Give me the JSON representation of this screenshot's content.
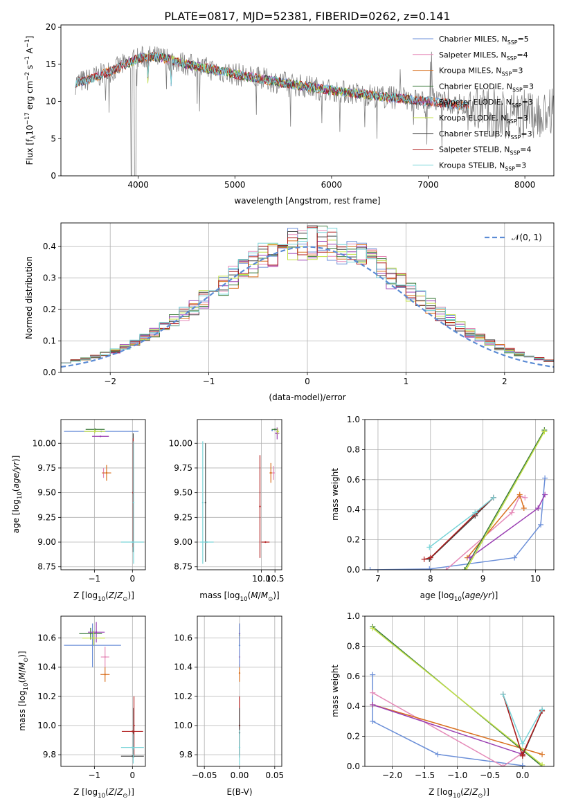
{
  "figure_title": "PLATE=0817, MJD=52381, FIBERID=0262, z=0.141",
  "colors": {
    "chabrier_miles": "#6b8fd8",
    "salpeter_miles": "#e58ab8",
    "kroupa_miles": "#d9701f",
    "chabrier_elodie": "#3a7a3a",
    "salpeter_elodie": "#9a3fb2",
    "kroupa_elodie": "#c3e048",
    "chabrier_stelib": "#444444",
    "salpeter_stelib": "#b01c1c",
    "kroupa_stelib": "#79d4d8",
    "data": "#808080"
  },
  "chart_data": [
    {
      "id": "spectrum",
      "type": "line",
      "xlabel": "wavelength [Angstrom, rest frame]",
      "ylabel": "Flux [f_λ 10^-17 erg cm^-2 s^-1 A^-1]",
      "xlim": [
        3200,
        8300
      ],
      "ylim": [
        0,
        20.3
      ],
      "xticks": [
        4000,
        5000,
        6000,
        7000,
        8000
      ],
      "yticks": [
        0,
        5,
        10,
        15,
        20
      ],
      "legend_position": "upper right",
      "legend": [
        {
          "label": "Chabrier MILES, N_SSP=5",
          "color_key": "chabrier_miles"
        },
        {
          "label": "Salpeter MILES, N_SSP=4",
          "color_key": "salpeter_miles"
        },
        {
          "label": "Kroupa MILES, N_SSP=3",
          "color_key": "kroupa_miles"
        },
        {
          "label": "Chabrier ELODIE, N_SSP=3",
          "color_key": "chabrier_elodie"
        },
        {
          "label": "Salpeter ELODIE, N_SSP=3",
          "color_key": "salpeter_elodie"
        },
        {
          "label": "Kroupa ELODIE, N_SSP=3",
          "color_key": "kroupa_elodie"
        },
        {
          "label": "Chabrier STELIB, N_SSP=3",
          "color_key": "chabrier_stelib"
        },
        {
          "label": "Salpeter STELIB, N_SSP=4",
          "color_key": "salpeter_stelib"
        },
        {
          "label": "Kroupa STELIB, N_SSP=3",
          "color_key": "kroupa_stelib"
        }
      ],
      "continuum": {
        "x": [
          3350,
          3500,
          3700,
          3900,
          4000,
          4100,
          4300,
          4500,
          5000,
          5500,
          6000,
          6500,
          7000,
          7400
        ],
        "y": [
          12.5,
          13.0,
          14.0,
          15.2,
          15.8,
          16.0,
          15.8,
          15.0,
          13.7,
          12.5,
          11.5,
          10.7,
          10.0,
          9.4
        ]
      },
      "model_ranges": {
        "miles": [
          3350,
          7420
        ],
        "elodie": [
          3900,
          6820
        ],
        "stelib": [
          3350,
          7420
        ]
      }
    },
    {
      "id": "residuals",
      "type": "histogram",
      "xlabel": "(data-model)/error",
      "ylabel": "Normed distribution",
      "xlim": [
        -2.5,
        2.5
      ],
      "ylim": [
        0,
        0.475
      ],
      "xticks": [
        -2,
        -1,
        0,
        1,
        2
      ],
      "yticks": [
        0.0,
        0.1,
        0.2,
        0.3,
        0.4
      ],
      "legend_position": "upper right",
      "reference_curve": {
        "label": "𝒩(0, 1)",
        "mean": 0,
        "sigma": 1
      },
      "bin_width": 0.1
    },
    {
      "id": "age_vs_Z",
      "type": "scatter",
      "xlabel": "Z [log10(Z/Z⊙)]",
      "ylabel": "age [log10(age/yr)]",
      "xlim": [
        -1.88,
        0.34
      ],
      "ylim": [
        8.72,
        10.24
      ],
      "xticks": [
        -1,
        0
      ],
      "yticks": [
        8.75,
        9.0,
        9.25,
        9.5,
        9.75,
        10.0
      ],
      "points": [
        {
          "k": "chabrier_miles",
          "x": -0.82,
          "xerr": 0.98,
          "y": 10.12,
          "yerr": 0.0
        },
        {
          "k": "salpeter_miles",
          "x": -0.76,
          "xerr": 0.04,
          "y": 9.7,
          "yerr": 0.05
        },
        {
          "k": "kroupa_miles",
          "x": -0.68,
          "xerr": 0.12,
          "y": 9.7,
          "yerr": 0.08
        },
        {
          "k": "chabrier_elodie",
          "x": -0.98,
          "xerr": 0.25,
          "y": 10.14,
          "yerr": 0.01
        },
        {
          "k": "salpeter_elodie",
          "x": -0.84,
          "xerr": 0.22,
          "y": 10.07,
          "yerr": 0.0
        },
        {
          "k": "kroupa_elodie",
          "x": -0.99,
          "xerr": 0.28,
          "y": 10.12,
          "yerr": 0.02
        },
        {
          "k": "chabrier_stelib",
          "x": 0.02,
          "xerr": 0.0,
          "y": 9.5,
          "yerr": 0.6
        },
        {
          "k": "salpeter_stelib",
          "x": 0.02,
          "xerr": 0.0,
          "y": 9.5,
          "yerr": 0.55
        },
        {
          "k": "kroupa_stelib",
          "x": 0.0,
          "xerr": 0.3,
          "y": 9.0,
          "yerr": 0.0
        },
        {
          "k": "kroupa_stelib",
          "x": 0.03,
          "xerr": 0.0,
          "y": 9.4,
          "yerr": 0.62
        }
      ]
    },
    {
      "id": "age_vs_mass",
      "type": "scatter",
      "xlabel": "mass [log10(M/M⊙)]",
      "xlim": [
        7.65,
        10.75
      ],
      "ylim": [
        8.72,
        10.24
      ],
      "xticks": [
        10.0,
        10.5
      ],
      "yticks": [
        8.75,
        9.0,
        9.25,
        9.5,
        9.75,
        10.0
      ],
      "points": [
        {
          "k": "chabrier_miles",
          "x": 10.4,
          "xerr": 0.0,
          "y": 10.13,
          "yerr": 0.0
        },
        {
          "k": "salpeter_miles",
          "x": 10.45,
          "xerr": 0.05,
          "y": 9.7,
          "yerr": 0.07
        },
        {
          "k": "kroupa_miles",
          "x": 10.35,
          "xerr": 0.05,
          "y": 9.7,
          "yerr": 0.1
        },
        {
          "k": "chabrier_elodie",
          "x": 10.5,
          "xerr": 0.12,
          "y": 10.14,
          "yerr": 0.01
        },
        {
          "k": "salpeter_elodie",
          "x": 10.58,
          "xerr": 0.08,
          "y": 10.1,
          "yerr": 0.06
        },
        {
          "k": "kroupa_elodie",
          "x": 10.6,
          "xerr": 0.05,
          "y": 10.12,
          "yerr": 0.03
        },
        {
          "k": "chabrier_stelib",
          "x": 7.95,
          "xerr": 0.0,
          "y": 9.4,
          "yerr": 0.6
        },
        {
          "k": "salpeter_stelib",
          "x": 9.95,
          "xerr": 0.0,
          "y": 9.36,
          "yerr": 0.52
        },
        {
          "k": "salpeter_stelib",
          "x": 10.15,
          "xerr": 0.15,
          "y": 9.0,
          "yerr": 0.0
        },
        {
          "k": "kroupa_stelib",
          "x": 8.0,
          "xerr": 0.25,
          "y": 9.0,
          "yerr": 0.0
        },
        {
          "k": "kroupa_stelib",
          "x": 7.85,
          "xerr": 0.0,
          "y": 9.4,
          "yerr": 0.62
        }
      ]
    },
    {
      "id": "weight_vs_age",
      "type": "line",
      "xlabel": "age [log10(age/yr)]",
      "ylabel": "mass weight",
      "xlim": [
        6.75,
        10.35
      ],
      "ylim": [
        0,
        1.0
      ],
      "xticks": [
        7,
        8,
        9,
        10
      ],
      "yticks": [
        0.0,
        0.2,
        0.4,
        0.6,
        0.8,
        1.0
      ],
      "series": [
        {
          "k": "chabrier_miles",
          "x": [
            6.85,
            7.98,
            9.6,
            10.1,
            10.18
          ],
          "y": [
            0.0,
            0.005,
            0.08,
            0.3,
            0.61
          ]
        },
        {
          "k": "salpeter_miles",
          "x": [
            8.3,
            9.55,
            9.7,
            9.8
          ],
          "y": [
            0.0,
            0.38,
            0.49,
            0.48
          ]
        },
        {
          "k": "kroupa_miles",
          "x": [
            8.7,
            9.7,
            9.78
          ],
          "y": [
            0.08,
            0.5,
            0.41
          ]
        },
        {
          "k": "chabrier_elodie",
          "x": [
            8.65,
            10.17
          ],
          "y": [
            0.0,
            0.93
          ]
        },
        {
          "k": "salpeter_elodie",
          "x": [
            8.75,
            10.05,
            10.18
          ],
          "y": [
            0.08,
            0.41,
            0.5
          ]
        },
        {
          "k": "kroupa_elodie",
          "x": [
            8.68,
            10.17
          ],
          "y": [
            0.0,
            0.92
          ]
        },
        {
          "k": "chabrier_stelib",
          "x": [
            7.98,
            8.85,
            9.2
          ],
          "y": [
            0.07,
            0.36,
            0.48
          ]
        },
        {
          "k": "salpeter_stelib",
          "x": [
            7.88,
            8.0,
            8.85,
            9.2
          ],
          "y": [
            0.07,
            0.08,
            0.37,
            0.48
          ]
        },
        {
          "k": "kroupa_stelib",
          "x": [
            7.98,
            8.85,
            9.2
          ],
          "y": [
            0.15,
            0.38,
            0.48
          ]
        }
      ]
    },
    {
      "id": "mass_vs_Z",
      "type": "scatter",
      "xlabel": "Z [log10(Z/Z⊙)]",
      "ylabel": "mass [log10(M/M⊙)]",
      "xlim": [
        -1.88,
        0.34
      ],
      "ylim": [
        9.72,
        10.75
      ],
      "xticks": [
        -1,
        0
      ],
      "yticks": [
        9.8,
        10.0,
        10.2,
        10.4,
        10.6
      ],
      "points": [
        {
          "k": "chabrier_miles",
          "x": -1.05,
          "xerr": 0.75,
          "y": 10.55,
          "yerr": 0.15
        },
        {
          "k": "salpeter_miles",
          "x": -0.72,
          "xerr": 0.11,
          "y": 10.47,
          "yerr": 0.07
        },
        {
          "k": "kroupa_miles",
          "x": -0.72,
          "xerr": 0.12,
          "y": 10.35,
          "yerr": 0.05
        },
        {
          "k": "chabrier_elodie",
          "x": -1.1,
          "xerr": 0.3,
          "y": 10.63,
          "yerr": 0.04
        },
        {
          "k": "salpeter_elodie",
          "x": -0.95,
          "xerr": 0.22,
          "y": 10.64,
          "yerr": 0.07
        },
        {
          "k": "kroupa_elodie",
          "x": -1.02,
          "xerr": 0.3,
          "y": 10.6,
          "yerr": 0.05
        },
        {
          "k": "chabrier_stelib",
          "x": 0.0,
          "xerr": 0.3,
          "y": 9.79,
          "yerr": 0.0
        },
        {
          "k": "chabrier_stelib",
          "x": 0.03,
          "xerr": 0.0,
          "y": 9.95,
          "yerr": 0.17
        },
        {
          "k": "salpeter_stelib",
          "x": 0.0,
          "xerr": 0.28,
          "y": 9.96,
          "yerr": 0.0
        },
        {
          "k": "salpeter_stelib",
          "x": 0.04,
          "xerr": 0.0,
          "y": 10.0,
          "yerr": 0.2
        },
        {
          "k": "kroupa_stelib",
          "x": 0.0,
          "xerr": 0.3,
          "y": 9.85,
          "yerr": 0.0
        },
        {
          "k": "kroupa_stelib",
          "x": 0.02,
          "xerr": 0.0,
          "y": 9.84,
          "yerr": 0.1
        }
      ]
    },
    {
      "id": "mass_vs_ebv",
      "type": "scatter",
      "xlabel": "E(B-V)",
      "xlim": [
        -0.06,
        0.06
      ],
      "ylim": [
        9.72,
        10.75
      ],
      "xticks": [
        -0.05,
        0.0,
        0.05
      ],
      "yticks": [
        9.8,
        10.0,
        10.2,
        10.4,
        10.6
      ],
      "points": [
        {
          "k": "kroupa_elodie",
          "x": 0.0,
          "xerr": 0.0,
          "y": 10.62,
          "yerr": 0.08
        },
        {
          "k": "salpeter_elodie",
          "x": 0.0,
          "xerr": 0.0,
          "y": 10.63,
          "yerr": 0.07
        },
        {
          "k": "kroupa_miles",
          "x": 0.0,
          "xerr": 0.0,
          "y": 10.36,
          "yerr": 0.06
        },
        {
          "k": "salpeter_miles",
          "x": 0.0,
          "xerr": 0.0,
          "y": 10.47,
          "yerr": 0.06
        },
        {
          "k": "chabrier_miles",
          "x": 0.0,
          "xerr": 0.0,
          "y": 10.55,
          "yerr": 0.15
        },
        {
          "k": "salpeter_stelib",
          "x": 0.0,
          "xerr": 0.0,
          "y": 10.0,
          "yerr": 0.2
        },
        {
          "k": "chabrier_stelib",
          "x": 0.0,
          "xerr": 0.0,
          "y": 9.95,
          "yerr": 0.17
        },
        {
          "k": "kroupa_stelib",
          "x": 0.0,
          "xerr": 0.0,
          "y": 9.85,
          "yerr": 0.12
        }
      ]
    },
    {
      "id": "weight_vs_Z",
      "type": "line",
      "xlabel": "Z [log10(Z/Z⊙)]",
      "ylabel": "mass weight",
      "xlim": [
        -2.42,
        0.48
      ],
      "ylim": [
        0,
        1.0
      ],
      "xticks": [
        -2.0,
        -1.5,
        -1.0,
        -0.5,
        0.0
      ],
      "yticks": [
        0.0,
        0.2,
        0.4,
        0.6,
        0.8,
        1.0
      ],
      "series": [
        {
          "k": "chabrier_miles",
          "x": [
            -2.3,
            -2.3,
            -1.3,
            0.0,
            0.0
          ],
          "y": [
            0.61,
            0.3,
            0.08,
            0.005,
            0.0
          ]
        },
        {
          "k": "salpeter_miles",
          "x": [
            -2.3,
            -0.3,
            0.0
          ],
          "y": [
            0.49,
            0.0,
            0.09
          ]
        },
        {
          "k": "kroupa_miles",
          "x": [
            -2.3,
            0.3
          ],
          "y": [
            0.41,
            0.08
          ]
        },
        {
          "k": "chabrier_elodie",
          "x": [
            -2.3,
            0.3
          ],
          "y": [
            0.93,
            0.0
          ]
        },
        {
          "k": "salpeter_elodie",
          "x": [
            -2.3,
            0.0
          ],
          "y": [
            0.41,
            0.08
          ]
        },
        {
          "k": "kroupa_elodie",
          "x": [
            -2.3,
            0.3
          ],
          "y": [
            0.92,
            0.01
          ]
        },
        {
          "k": "chabrier_stelib",
          "x": [
            -0.3,
            0.0,
            0.3
          ],
          "y": [
            0.48,
            0.07,
            0.37
          ]
        },
        {
          "k": "salpeter_stelib",
          "x": [
            -0.3,
            0.0,
            0.0,
            0.3
          ],
          "y": [
            0.48,
            0.07,
            0.08,
            0.37
          ]
        },
        {
          "k": "kroupa_stelib",
          "x": [
            -0.3,
            0.0,
            0.3
          ],
          "y": [
            0.48,
            0.15,
            0.38
          ]
        }
      ]
    }
  ]
}
